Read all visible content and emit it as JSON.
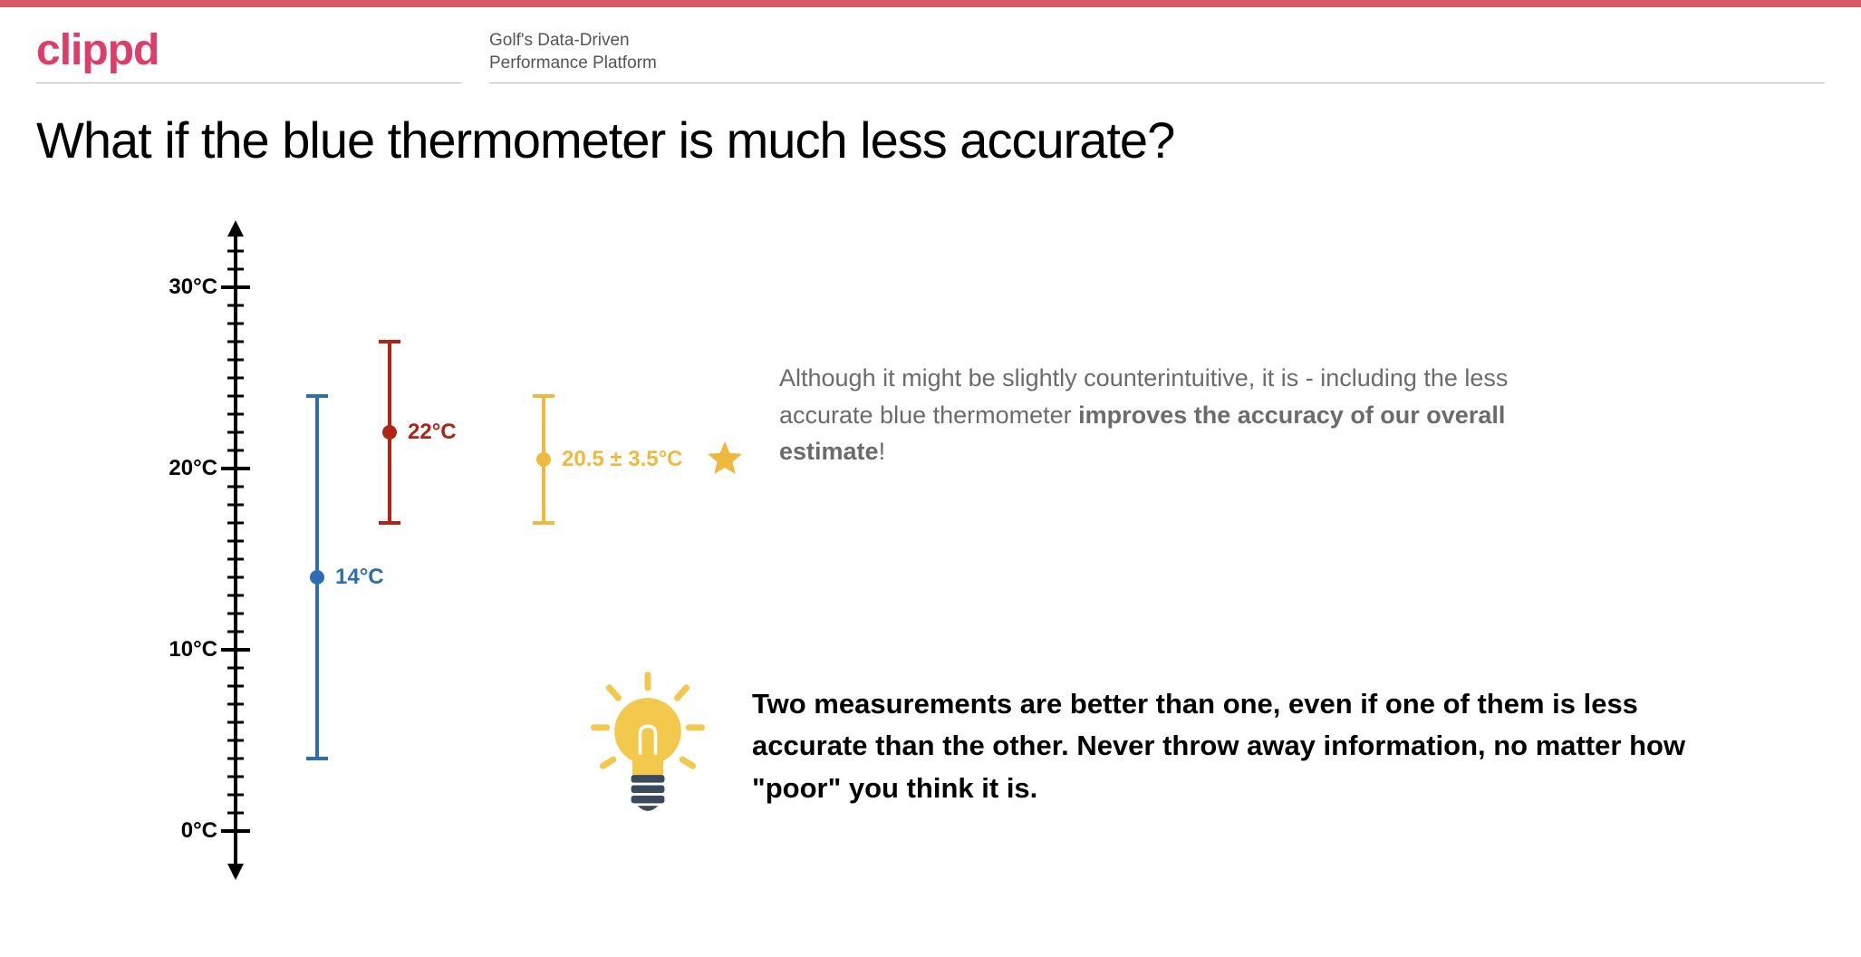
{
  "brand": "clippd",
  "tagline_line1": "Golf's Data-Driven",
  "tagline_line2": "Performance Platform",
  "title": "What if the blue thermometer is much less accurate?",
  "accent_bar_color": "#d85a6a",
  "brand_color": "#de3d68",
  "chart": {
    "type": "errorbar",
    "axis_color": "#000000",
    "ymin": -2,
    "ymax": 33,
    "tick_major_step": 10,
    "tick_minor_step": 1,
    "tick_labels": [
      "0°C",
      "10°C",
      "20°C",
      "30°C"
    ],
    "tick_values": [
      0,
      10,
      20,
      30
    ],
    "series": [
      {
        "name": "blue",
        "color": "#2d6db3",
        "x_offset": 90,
        "mean": 14,
        "low": 4,
        "high": 24,
        "label": "14°C",
        "cap_width": 24
      },
      {
        "name": "red",
        "color": "#b02418",
        "x_offset": 170,
        "mean": 22,
        "low": 17,
        "high": 27,
        "label": "22°C",
        "cap_width": 24
      },
      {
        "name": "combined",
        "color": "#eeb93e",
        "x_offset": 340,
        "mean": 20.5,
        "low": 17,
        "high": 24,
        "label": "20.5 ± 3.5°C",
        "cap_width": 24,
        "star": true
      }
    ]
  },
  "explain_html": "Although it might be slightly counterintuitive, it is - including the less accurate blue thermometer <strong>improves the accuracy of our overall estimate</strong>!",
  "takeaway": "Two measurements are better than one, even if one of them is less accurate than the other. Never throw away information, no matter how \"poor\" you think it is.",
  "star_color": "#eeb93e",
  "bulb_color": "#f2c94c",
  "bulb_base_color": "#3a4a5c"
}
